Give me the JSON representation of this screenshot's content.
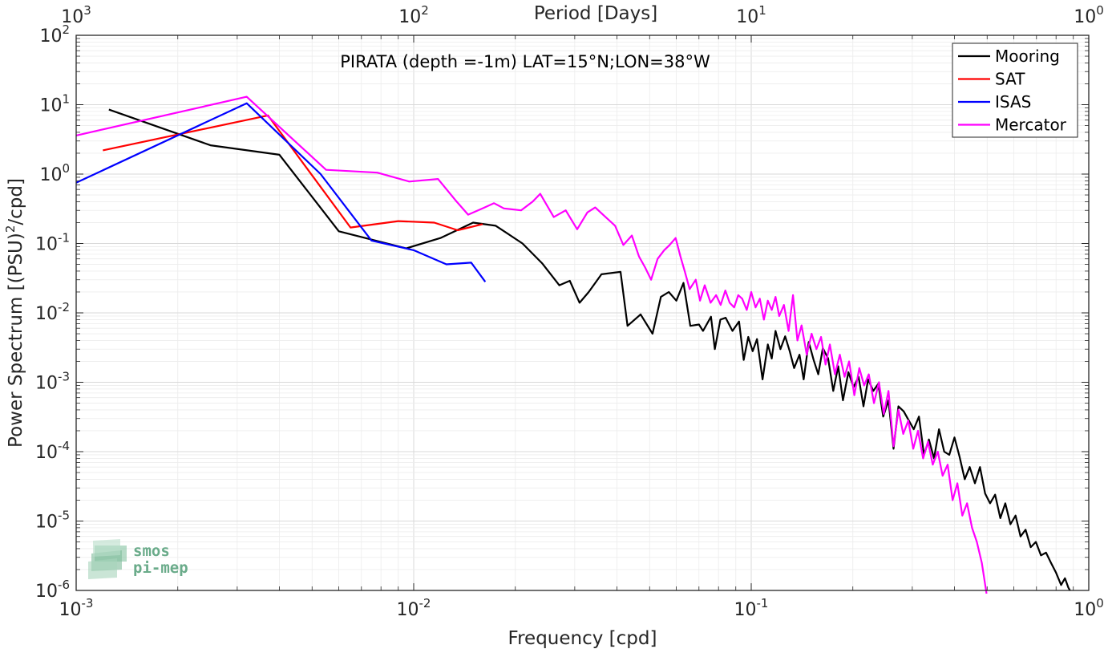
{
  "chart_data": {
    "type": "line",
    "title": "PIRATA (depth =-1m) LAT=15°N;LON=38°W",
    "xlabel": "Frequency [cpd]",
    "ylabel": "Power Spectrum [(PSU)²/cpd]",
    "ylabel_parts": {
      "main": "Power Spectrum [(PSU)",
      "sup": "2",
      "tail": "/cpd]"
    },
    "top_xlabel": "Period [Days]",
    "xscale": "log",
    "yscale": "log",
    "xlim": [
      0.001,
      1
    ],
    "ylim": [
      1e-06,
      100
    ],
    "grid": true,
    "legend_position": "top-right",
    "x_ticks": [
      {
        "base": "10",
        "exp": "-3"
      },
      {
        "base": "10",
        "exp": "-2"
      },
      {
        "base": "10",
        "exp": "-1"
      },
      {
        "base": "10",
        "exp": "0"
      }
    ],
    "top_ticks": [
      {
        "base": "10",
        "exp": "3"
      },
      {
        "base": "10",
        "exp": "2"
      },
      {
        "base": "10",
        "exp": "1"
      },
      {
        "base": "10",
        "exp": "0"
      }
    ],
    "y_ticks": [
      {
        "base": "10",
        "exp": "-6"
      },
      {
        "base": "10",
        "exp": "-5"
      },
      {
        "base": "10",
        "exp": "-4"
      },
      {
        "base": "10",
        "exp": "-3"
      },
      {
        "base": "10",
        "exp": "-2"
      },
      {
        "base": "10",
        "exp": "-1"
      },
      {
        "base": "10",
        "exp": "0"
      },
      {
        "base": "10",
        "exp": "1"
      },
      {
        "base": "10",
        "exp": "2"
      }
    ],
    "series": [
      {
        "name": "Mooring",
        "color": "#000000",
        "x": [
          0.00125,
          0.0025,
          0.004,
          0.006,
          0.0095,
          0.012,
          0.015,
          0.0175,
          0.021,
          0.024,
          0.027,
          0.029,
          0.031,
          0.033,
          0.036,
          0.041,
          0.043,
          0.047,
          0.051,
          0.054,
          0.057,
          0.06,
          0.063,
          0.066,
          0.07,
          0.072,
          0.076,
          0.078,
          0.081,
          0.084,
          0.088,
          0.092,
          0.095,
          0.098,
          0.101,
          0.104,
          0.108,
          0.112,
          0.115,
          0.118,
          0.122,
          0.126,
          0.13,
          0.134,
          0.139,
          0.143,
          0.148,
          0.153,
          0.158,
          0.163,
          0.169,
          0.175,
          0.181,
          0.187,
          0.194,
          0.201,
          0.208,
          0.215,
          0.222,
          0.23,
          0.238,
          0.246,
          0.255,
          0.264,
          0.273,
          0.283,
          0.293,
          0.303,
          0.314,
          0.325,
          0.336,
          0.348,
          0.36,
          0.373,
          0.386,
          0.4,
          0.414,
          0.429,
          0.444,
          0.46,
          0.476,
          0.493,
          0.51,
          0.528,
          0.547,
          0.566,
          0.586,
          0.607,
          0.628,
          0.65,
          0.673,
          0.697,
          0.722,
          0.747,
          0.773,
          0.8,
          0.828,
          0.85,
          0.87,
          0.88
        ],
        "y": [
          8.5,
          2.6,
          1.9,
          0.15,
          0.085,
          0.12,
          0.2,
          0.18,
          0.1,
          0.052,
          0.025,
          0.029,
          0.014,
          0.02,
          0.036,
          0.039,
          0.0065,
          0.0095,
          0.005,
          0.017,
          0.02,
          0.015,
          0.027,
          0.0065,
          0.0068,
          0.0055,
          0.0088,
          0.003,
          0.008,
          0.0085,
          0.0055,
          0.0075,
          0.0021,
          0.0045,
          0.0028,
          0.0042,
          0.0011,
          0.0035,
          0.0022,
          0.0055,
          0.003,
          0.0046,
          0.0028,
          0.0016,
          0.0025,
          0.0011,
          0.0038,
          0.0021,
          0.0013,
          0.0031,
          0.0022,
          0.00075,
          0.0017,
          0.00055,
          0.0014,
          0.00085,
          0.0012,
          0.00045,
          0.0011,
          0.00075,
          0.00095,
          0.00032,
          0.00055,
          0.00011,
          0.00045,
          0.00038,
          0.00028,
          0.00021,
          0.00032,
          9e-05,
          0.00015,
          8e-05,
          0.00021,
          0.0001,
          9e-05,
          0.00016,
          8.5e-05,
          4e-05,
          6e-05,
          3.5e-05,
          6e-05,
          2.5e-05,
          1.8e-05,
          2.4e-05,
          1.1e-05,
          1.8e-05,
          9e-06,
          1.2e-05,
          6e-06,
          7.5e-06,
          4.2e-06,
          5e-06,
          3.2e-06,
          3.5e-06,
          2.5e-06,
          1.8e-06,
          1.2e-06,
          1.5e-06,
          1.1e-06,
          1e-06
        ]
      },
      {
        "name": "SAT",
        "color": "#ff0000",
        "x": [
          0.0012,
          0.0037,
          0.0065,
          0.009,
          0.0115,
          0.0135,
          0.016
        ],
        "y": [
          2.2,
          7.0,
          0.17,
          0.21,
          0.2,
          0.155,
          0.19
        ]
      },
      {
        "name": "ISAS",
        "color": "#0000ff",
        "x": [
          0.001,
          0.0032,
          0.0053,
          0.0075,
          0.01,
          0.0125,
          0.0148,
          0.0163
        ],
        "y": [
          0.75,
          10.5,
          1.0,
          0.11,
          0.08,
          0.05,
          0.053,
          0.028
        ]
      },
      {
        "name": "Mercator",
        "color": "#ff00ff",
        "x": [
          0.001,
          0.0032,
          0.0055,
          0.0078,
          0.0097,
          0.0118,
          0.0133,
          0.0145,
          0.016,
          0.0173,
          0.0185,
          0.0208,
          0.0225,
          0.0237,
          0.026,
          0.0282,
          0.0305,
          0.0327,
          0.0345,
          0.0367,
          0.0395,
          0.0418,
          0.0443,
          0.0465,
          0.0485,
          0.0505,
          0.0528,
          0.0552,
          0.0573,
          0.0597,
          0.0617,
          0.0635,
          0.0657,
          0.0685,
          0.0705,
          0.0728,
          0.0758,
          0.0787,
          0.0812,
          0.0838,
          0.0863,
          0.089,
          0.0915,
          0.094,
          0.097,
          0.1,
          0.103,
          0.106,
          0.109,
          0.112,
          0.115,
          0.118,
          0.121,
          0.125,
          0.129,
          0.133,
          0.137,
          0.141,
          0.146,
          0.151,
          0.156,
          0.161,
          0.166,
          0.171,
          0.177,
          0.183,
          0.189,
          0.195,
          0.202,
          0.209,
          0.216,
          0.223,
          0.231,
          0.239,
          0.247,
          0.255,
          0.264,
          0.273,
          0.282,
          0.292,
          0.302,
          0.312,
          0.323,
          0.334,
          0.345,
          0.357,
          0.369,
          0.382,
          0.395,
          0.408,
          0.422,
          0.436,
          0.451,
          0.466,
          0.482,
          0.498
        ],
        "y": [
          3.6,
          13.0,
          1.15,
          1.05,
          0.78,
          0.85,
          0.42,
          0.26,
          0.32,
          0.38,
          0.32,
          0.3,
          0.4,
          0.52,
          0.24,
          0.3,
          0.16,
          0.28,
          0.33,
          0.25,
          0.18,
          0.095,
          0.13,
          0.065,
          0.045,
          0.03,
          0.06,
          0.08,
          0.095,
          0.12,
          0.065,
          0.04,
          0.022,
          0.03,
          0.015,
          0.025,
          0.014,
          0.018,
          0.013,
          0.021,
          0.014,
          0.012,
          0.018,
          0.016,
          0.011,
          0.02,
          0.012,
          0.016,
          0.008,
          0.015,
          0.011,
          0.017,
          0.009,
          0.013,
          0.0055,
          0.018,
          0.004,
          0.0066,
          0.0025,
          0.005,
          0.003,
          0.0045,
          0.0018,
          0.0035,
          0.0013,
          0.0025,
          0.0012,
          0.002,
          0.00065,
          0.0016,
          0.0009,
          0.0013,
          0.0005,
          0.001,
          0.00035,
          0.00075,
          0.00012,
          0.0004,
          0.00018,
          0.00028,
          0.00011,
          0.0002,
          8e-05,
          0.00014,
          6.5e-05,
          0.0001,
          4.5e-05,
          6.5e-05,
          2e-05,
          3.5e-05,
          1.2e-05,
          1.8e-05,
          8e-06,
          5e-06,
          2.5e-06,
          9e-07
        ]
      }
    ]
  },
  "logo": {
    "line1": "smos",
    "line2": "pi-mep"
  }
}
